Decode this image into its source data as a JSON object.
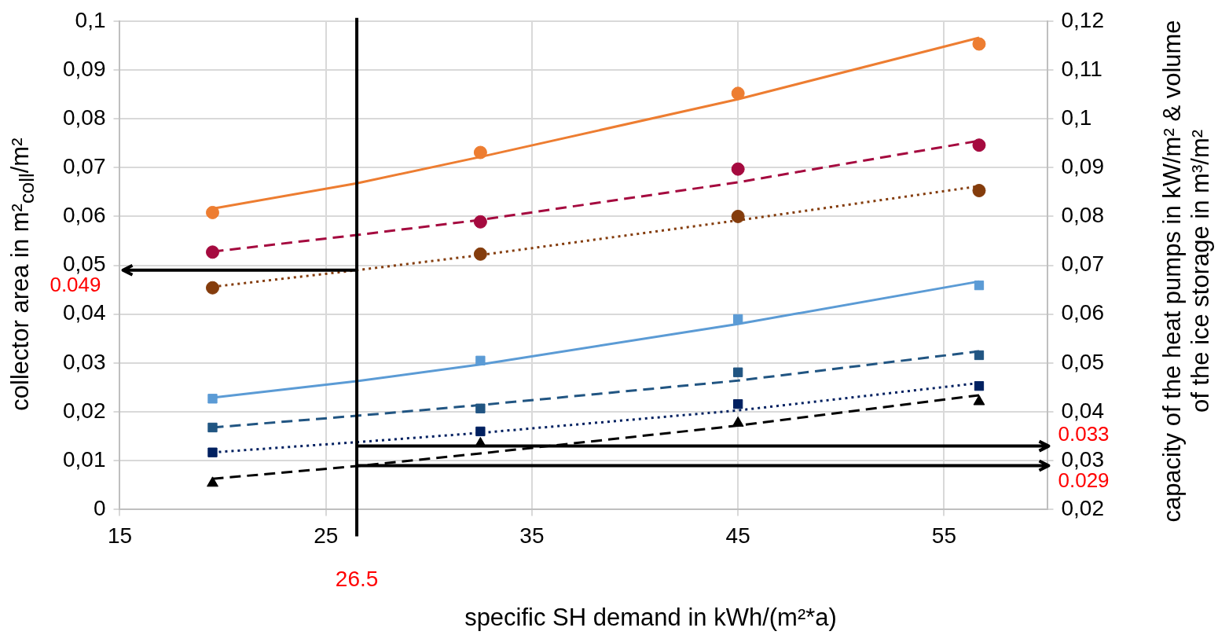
{
  "chart_data": {
    "type": "scatter",
    "xlabel": "specific SH demand in kWh/(m²*a)",
    "ylabel": "collector area in m²$_{coll}$/m²",
    "y2label": "capacity of the heat pumps in kW/m² & volume of the ice storage in m³/m²",
    "xlim": [
      15,
      60
    ],
    "xticks": [
      15,
      25,
      35,
      45,
      55
    ],
    "ylim": [
      0,
      0.1
    ],
    "yticks": [
      0,
      {
        "value": 0.01,
        "label": "0,01"
      },
      {
        "value": 0.02,
        "label": "0,02"
      },
      {
        "value": 0.03,
        "label": "0,03"
      },
      {
        "value": 0.04,
        "label": "0,04"
      },
      {
        "value": 0.05,
        "label": "0,05"
      },
      {
        "value": 0.06,
        "label": "0,06"
      },
      {
        "value": 0.07,
        "label": "0,07"
      },
      {
        "value": 0.08,
        "label": "0,08"
      },
      {
        "value": 0.09,
        "label": "0,09"
      },
      {
        "value": 0.1,
        "label": "0,1"
      }
    ],
    "y2lim": [
      0.02,
      0.12
    ],
    "y2ticks": [
      {
        "value": 0.02,
        "label": "0,02"
      },
      {
        "value": 0.03,
        "label": "0,03"
      },
      {
        "value": 0.04,
        "label": "0,04"
      },
      {
        "value": 0.05,
        "label": "0,05"
      },
      {
        "value": 0.06,
        "label": "0,06"
      },
      {
        "value": 0.07,
        "label": "0,07"
      },
      {
        "value": 0.08,
        "label": "0,08"
      },
      {
        "value": 0.09,
        "label": "0,09"
      },
      {
        "value": 0.1,
        "label": "0,1"
      },
      {
        "value": 0.11,
        "label": "0,11"
      },
      {
        "value": 0.12,
        "label": "0,12"
      }
    ],
    "grid": true,
    "legend": false,
    "series": [
      {
        "type": "scatter",
        "marker": "circle",
        "color": "#ed7d31",
        "x": [
          19.5,
          32.5,
          45,
          56.7
        ],
        "values": [
          0.0608,
          0.0731,
          0.0852,
          0.0953
        ]
      },
      {
        "type": "scatter",
        "marker": "circle",
        "color": "#a50a3f",
        "x": [
          19.5,
          32.5,
          45,
          56.7
        ],
        "values": [
          0.0527,
          0.0589,
          0.0697,
          0.0746
        ]
      },
      {
        "type": "scatter",
        "marker": "circle",
        "color": "#843c0c",
        "x": [
          19.5,
          32.5,
          45,
          56.7
        ],
        "values": [
          0.0454,
          0.0523,
          0.06,
          0.0653
        ]
      },
      {
        "type": "scatter",
        "marker": "square",
        "color": "#5b9bd5",
        "axis": "y2",
        "x": [
          19.5,
          32.5,
          45,
          56.7
        ],
        "values": [
          0.0427,
          0.0505,
          0.059,
          0.0659
        ]
      },
      {
        "type": "scatter",
        "marker": "square",
        "color": "#215582",
        "axis": "y2",
        "x": [
          19.5,
          32.5,
          45,
          56.7
        ],
        "values": [
          0.0368,
          0.0407,
          0.0481,
          0.0516
        ]
      },
      {
        "type": "scatter",
        "marker": "square",
        "color": "#002060",
        "axis": "y2",
        "x": [
          19.5,
          32.5,
          45,
          56.7
        ],
        "values": [
          0.0317,
          0.036,
          0.0416,
          0.0453
        ]
      },
      {
        "type": "scatter",
        "marker": "triangle",
        "color": "#000000",
        "axis": "y2",
        "x": [
          19.5,
          32.5,
          45,
          56.7
        ],
        "values": [
          0.0254,
          0.0335,
          0.0377,
          0.0421
        ]
      },
      {
        "type": "line",
        "marker": "none",
        "line_style": "solid",
        "color": "#ed7d31",
        "x": [
          19.5,
          26.5,
          32.5,
          45,
          56.7
        ],
        "values": [
          0.0616,
          0.0668,
          0.0722,
          0.084,
          0.0966
        ]
      },
      {
        "type": "line",
        "marker": "none",
        "line_style": "dashed",
        "color": "#a50a3f",
        "x": [
          19.5,
          26.5,
          32.5,
          45,
          56.7
        ],
        "values": [
          0.0528,
          0.0562,
          0.0593,
          0.067,
          0.0755
        ]
      },
      {
        "type": "line",
        "marker": "none",
        "line_style": "dotted",
        "color": "#843c0c",
        "x": [
          19.5,
          26.5,
          32.5,
          45,
          56.7
        ],
        "values": [
          0.0456,
          0.049,
          0.0521,
          0.0592,
          0.0662
        ]
      },
      {
        "type": "line",
        "marker": "none",
        "line_style": "solid",
        "color": "#5b9bd5",
        "axis": "y2",
        "x": [
          19.5,
          26.5,
          32.5,
          45,
          56.7
        ],
        "values": [
          0.0429,
          0.0463,
          0.0497,
          0.058,
          0.0667
        ]
      },
      {
        "type": "line",
        "marker": "none",
        "line_style": "dashed",
        "color": "#215582",
        "axis": "y2",
        "x": [
          19.5,
          26.5,
          32.5,
          45,
          56.7
        ],
        "values": [
          0.0368,
          0.0392,
          0.0414,
          0.0464,
          0.0524
        ]
      },
      {
        "type": "line",
        "marker": "none",
        "line_style": "dotted",
        "color": "#002060",
        "axis": "y2",
        "x": [
          19.5,
          26.5,
          32.5,
          45,
          56.7
        ],
        "values": [
          0.0317,
          0.0338,
          0.0357,
          0.0403,
          0.0459
        ]
      },
      {
        "type": "line",
        "marker": "none",
        "line_style": "dashed",
        "color": "#000000",
        "axis": "y2",
        "x": [
          19.5,
          26.5,
          32.5,
          45,
          56.7
        ],
        "values": [
          0.0263,
          0.0289,
          0.0315,
          0.0372,
          0.0434
        ]
      }
    ],
    "ref_lines": [
      {
        "axis": "x",
        "value": 26.5,
        "label": "26.5",
        "color": "#000000"
      },
      {
        "axis": "y",
        "value": 0.049,
        "label": "0.049",
        "color": "#000000"
      },
      {
        "axis": "y2",
        "value": 0.033,
        "label": "0.033",
        "color": "#000000"
      },
      {
        "axis": "y2",
        "value": 0.029,
        "label": "0.029",
        "color": "#000000"
      }
    ]
  }
}
